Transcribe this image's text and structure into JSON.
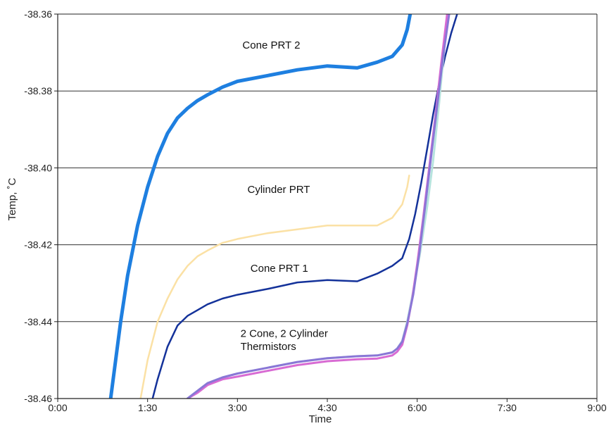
{
  "chart_data": {
    "type": "line",
    "xlabel": "Time",
    "ylabel": "Temp, ˚C",
    "xlim": [
      0,
      540
    ],
    "ylim": [
      -38.46,
      -38.36
    ],
    "x_ticks": [
      {
        "value": 0,
        "label": "0:00"
      },
      {
        "value": 90,
        "label": "1:30"
      },
      {
        "value": 180,
        "label": "3:00"
      },
      {
        "value": 270,
        "label": "4:30"
      },
      {
        "value": 360,
        "label": "6:00"
      },
      {
        "value": 450,
        "label": "7:30"
      },
      {
        "value": 540,
        "label": "9:00"
      }
    ],
    "y_ticks": [
      {
        "value": -38.36,
        "label": "-38.36"
      },
      {
        "value": -38.38,
        "label": "-38.38"
      },
      {
        "value": -38.4,
        "label": "-38.40"
      },
      {
        "value": -38.42,
        "label": "-38.42"
      },
      {
        "value": -38.44,
        "label": "-38.44"
      },
      {
        "value": -38.46,
        "label": "-38.46"
      }
    ],
    "grid": "horizontal",
    "annotations": [
      {
        "text": "Cone PRT 2",
        "x": 185,
        "y": -38.369
      },
      {
        "text": "Cylinder PRT",
        "x": 190,
        "y": -38.4065
      },
      {
        "text": "Cone PRT 1",
        "x": 193,
        "y": -38.427
      },
      {
        "text": "2 Cone, 2 Cylinder",
        "x": 183,
        "y": -38.444
      },
      {
        "text": "Thermistors",
        "x": 183,
        "y": -38.4474
      }
    ],
    "series": [
      {
        "color": "#1e7fe0",
        "width": 5,
        "x": [
          53,
          58,
          63,
          70,
          80,
          90,
          100,
          110,
          120,
          130,
          140,
          150,
          165,
          180,
          210,
          240,
          270,
          300,
          320,
          335,
          345,
          350,
          353
        ],
        "y": [
          -38.46,
          -38.45,
          -38.44,
          -38.428,
          -38.415,
          -38.405,
          -38.397,
          -38.391,
          -38.387,
          -38.3845,
          -38.3825,
          -38.381,
          -38.379,
          -38.3775,
          -38.376,
          -38.3745,
          -38.3735,
          -38.374,
          -38.3725,
          -38.371,
          -38.368,
          -38.364,
          -38.36
        ]
      },
      {
        "color": "#fbe1a5",
        "width": 2.5,
        "x": [
          83,
          90,
          100,
          110,
          120,
          130,
          140,
          150,
          165,
          180,
          210,
          240,
          270,
          300,
          320,
          335,
          345,
          350,
          352
        ],
        "y": [
          -38.46,
          -38.45,
          -38.44,
          -38.434,
          -38.429,
          -38.4255,
          -38.423,
          -38.4215,
          -38.4195,
          -38.4185,
          -38.417,
          -38.416,
          -38.415,
          -38.415,
          -38.415,
          -38.413,
          -38.4095,
          -38.405,
          -38.402
        ]
      },
      {
        "color": "#14329a",
        "width": 2.5,
        "x": [
          95,
          100,
          110,
          120,
          130,
          140,
          150,
          165,
          180,
          210,
          240,
          270,
          300,
          320,
          335,
          345,
          352,
          358,
          364,
          370,
          376,
          382,
          388,
          394,
          400
        ],
        "y": [
          -38.46,
          -38.455,
          -38.4465,
          -38.441,
          -38.4385,
          -38.437,
          -38.4355,
          -38.434,
          -38.433,
          -38.4315,
          -38.4298,
          -38.4292,
          -38.4295,
          -38.4275,
          -38.4255,
          -38.4235,
          -38.4185,
          -38.412,
          -38.404,
          -38.395,
          -38.386,
          -38.378,
          -38.371,
          -38.365,
          -38.36
        ]
      },
      {
        "color": "#b6e3de",
        "width": 3,
        "x": [
          130,
          140,
          150,
          165,
          180,
          210,
          240,
          270,
          300,
          320,
          335,
          340,
          345,
          350,
          356,
          363,
          370,
          376,
          382,
          386,
          390
        ],
        "y": [
          -38.46,
          -38.458,
          -38.456,
          -38.4545,
          -38.4535,
          -38.452,
          -38.4505,
          -38.4495,
          -38.449,
          -38.4488,
          -38.448,
          -38.447,
          -38.445,
          -38.44,
          -38.432,
          -38.422,
          -38.41,
          -38.398,
          -38.383,
          -38.372,
          -38.36
        ]
      },
      {
        "color": "#d86bd3",
        "width": 3,
        "x": [
          130,
          140,
          150,
          165,
          180,
          210,
          240,
          270,
          300,
          320,
          335,
          340,
          345,
          350,
          355,
          360,
          366,
          372,
          378,
          384,
          390
        ],
        "y": [
          -38.46,
          -38.4585,
          -38.4565,
          -38.455,
          -38.4543,
          -38.4528,
          -38.4513,
          -38.4503,
          -38.4498,
          -38.4496,
          -38.4488,
          -38.4478,
          -38.446,
          -38.441,
          -38.434,
          -38.425,
          -38.413,
          -38.4,
          -38.387,
          -38.373,
          -38.36
        ]
      },
      {
        "color": "#8a76d6",
        "width": 3,
        "x": [
          130,
          140,
          150,
          165,
          180,
          210,
          240,
          270,
          300,
          320,
          335,
          340,
          345,
          350,
          356,
          362,
          368,
          374,
          380,
          386,
          392
        ],
        "y": [
          -38.46,
          -38.458,
          -38.456,
          -38.4545,
          -38.4535,
          -38.452,
          -38.4505,
          -38.4495,
          -38.449,
          -38.4488,
          -38.448,
          -38.447,
          -38.4452,
          -38.4405,
          -38.433,
          -38.4225,
          -38.41,
          -38.397,
          -38.384,
          -38.371,
          -38.36
        ]
      }
    ]
  }
}
